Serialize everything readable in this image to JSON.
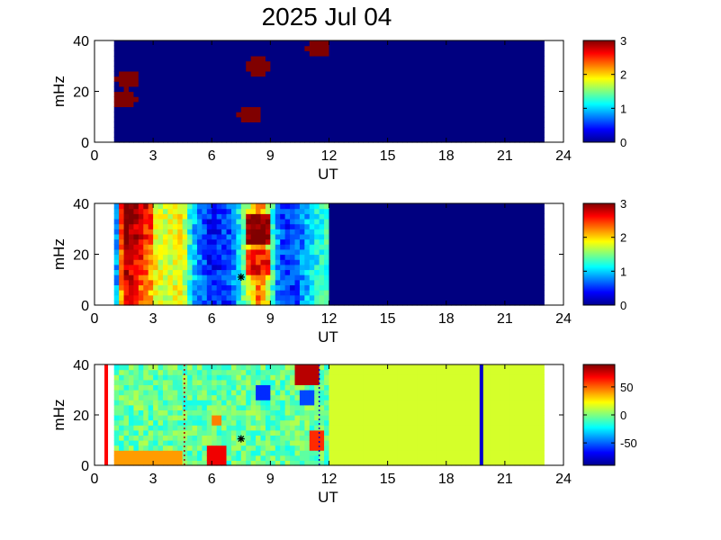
{
  "title": "2025 Jul 04",
  "chart_data": [
    {
      "type": "heatmap",
      "xlabel": "UT",
      "ylabel": "mHz",
      "xlim": [
        0,
        24
      ],
      "ylim": [
        0,
        40
      ],
      "x_ticks": [
        "0",
        "3",
        "6",
        "9",
        "12",
        "15",
        "18",
        "21",
        "24"
      ],
      "y_ticks": [
        "0",
        "20",
        "40"
      ],
      "data_range_ut": [
        1,
        23
      ],
      "colorbar": {
        "range": [
          0,
          3
        ],
        "ticks": [
          "0",
          "1",
          "2",
          "3"
        ]
      },
      "background_value": 0,
      "features": [
        {
          "ut": 1.7,
          "mhz": 24.5,
          "value": 3
        },
        {
          "ut": 1.6,
          "mhz": 17,
          "value": 3
        },
        {
          "ut": 8.3,
          "mhz": 30,
          "value": 3
        },
        {
          "ut": 7.9,
          "mhz": 11,
          "value": 3
        },
        {
          "ut": 11.4,
          "mhz": 37,
          "value": 3
        }
      ]
    },
    {
      "type": "heatmap",
      "xlabel": "UT",
      "ylabel": "mHz",
      "xlim": [
        0,
        24
      ],
      "ylim": [
        0,
        40
      ],
      "x_ticks": [
        "0",
        "3",
        "6",
        "9",
        "12",
        "15",
        "18",
        "21",
        "24"
      ],
      "y_ticks": [
        "0",
        "20",
        "40"
      ],
      "data_range_ut": [
        1,
        23
      ],
      "colorbar": {
        "range": [
          0,
          3
        ],
        "ticks": [
          "0",
          "1",
          "2",
          "3"
        ]
      },
      "profile_ut": [
        1.0,
        1.5,
        2.5,
        3.5,
        4.5,
        5.0,
        6.0,
        7.0,
        7.6,
        8.5,
        9.5,
        10.2,
        11.0,
        11.8
      ],
      "profile_value": [
        0.2,
        2.7,
        2.2,
        1.7,
        1.9,
        1.0,
        0.4,
        0.6,
        1.4,
        2.4,
        0.6,
        0.5,
        1.0,
        1.3
      ],
      "no_data_after_ut": 11.9,
      "background_value": 0,
      "marker": {
        "ut": 7.5,
        "mhz": 11
      }
    },
    {
      "type": "heatmap",
      "xlabel": "UT",
      "ylabel": "mHz",
      "xlim": [
        0,
        24
      ],
      "ylim": [
        0,
        40
      ],
      "x_ticks": [
        "0",
        "3",
        "6",
        "9",
        "12",
        "15",
        "18",
        "21",
        "24"
      ],
      "y_ticks": [
        "0",
        "20",
        "40"
      ],
      "data_range_ut": [
        1,
        23
      ],
      "colorbar": {
        "range": [
          -90,
          90
        ],
        "ticks": [
          "50",
          "0",
          "-50"
        ],
        "tick_values": [
          50,
          0,
          -50
        ]
      },
      "fill_value_after_ut": 11.9,
      "fill_value": 15,
      "vertical_lines": [
        {
          "ut": 0.6,
          "color": "#ff0000",
          "style": "solid"
        },
        {
          "ut": 4.6,
          "color": "#aa0000",
          "style": "dotted"
        },
        {
          "ut": 11.5,
          "color": "#0000cc",
          "style": "dotted"
        },
        {
          "ut": 19.8,
          "color": "#0000cc",
          "style": "solid"
        }
      ],
      "marker": {
        "ut": 7.5,
        "mhz": 10.5
      }
    }
  ]
}
